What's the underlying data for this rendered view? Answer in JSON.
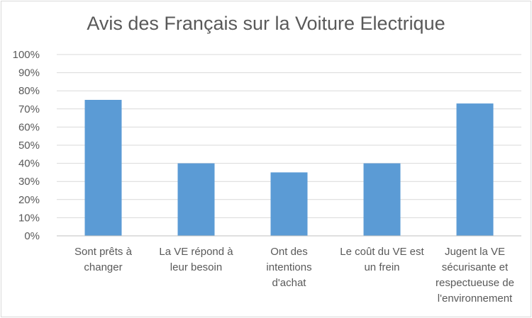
{
  "chart_data": {
    "type": "bar",
    "title": "Avis des Français sur la Voiture Electrique",
    "categories": [
      [
        "Sont prêts à",
        "changer"
      ],
      [
        "La VE répond à",
        "leur besoin"
      ],
      [
        "Ont des",
        "intentions",
        "d'achat"
      ],
      [
        "Le coût du VE est",
        "un frein"
      ],
      [
        "Jugent la VE",
        "sécurisante et",
        "respectueuse de",
        "l'environnement"
      ]
    ],
    "values": [
      75,
      40,
      35,
      40,
      73
    ],
    "ylim": [
      0,
      100
    ],
    "yticks": [
      "0%",
      "10%",
      "20%",
      "30%",
      "40%",
      "50%",
      "60%",
      "70%",
      "80%",
      "90%",
      "100%"
    ],
    "grid": true,
    "legend": "none",
    "bar_color": "#5b9bd5",
    "xlabel": "",
    "ylabel": ""
  }
}
